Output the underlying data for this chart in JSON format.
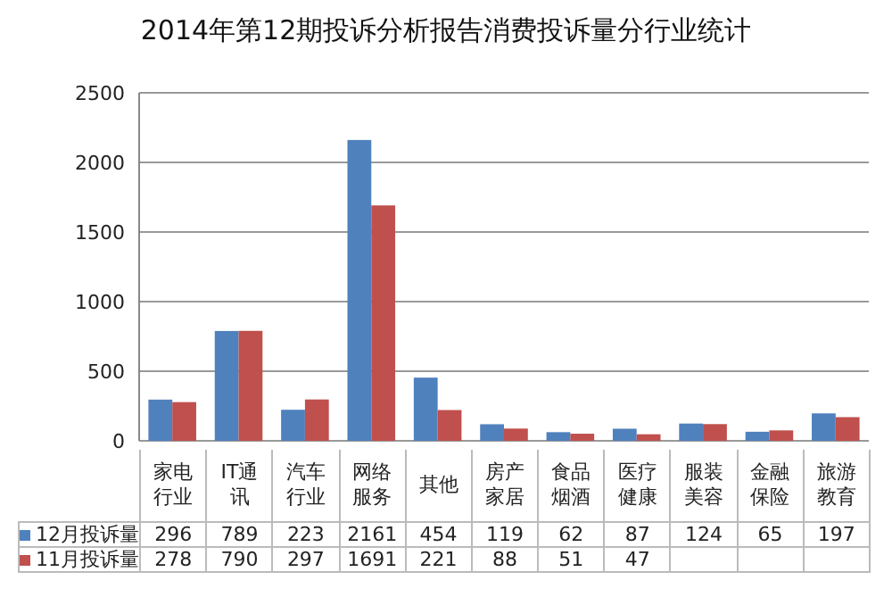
{
  "chart_data": {
    "type": "bar",
    "title": "2014年第12期投诉分析报告消费投诉量分行业统计",
    "categories": [
      "家电行业",
      "IT通讯",
      "汽车行业",
      "网络服务",
      "其他",
      "房产家居",
      "食品烟酒",
      "医疗健康",
      "服装美容",
      "金融保险",
      "旅游教育"
    ],
    "series": [
      {
        "name": "12月投诉量",
        "color": "#4f81bd",
        "values": [
          296,
          789,
          223,
          2161,
          454,
          119,
          62,
          87,
          124,
          65,
          197
        ],
        "value_labels": [
          "296",
          "789",
          "223",
          "2161",
          "454",
          "119",
          "62",
          "87",
          "124",
          "65",
          "197"
        ]
      },
      {
        "name": "11月投诉量",
        "color": "#c0504d",
        "values": [
          278,
          790,
          297,
          1691,
          221,
          88,
          51,
          47,
          120,
          75,
          170
        ],
        "value_labels": [
          "278",
          "790",
          "297",
          "1691",
          "221",
          "88",
          "51",
          "47",
          null,
          null,
          null
        ]
      }
    ],
    "ylim": [
      0,
      2500
    ],
    "yticks": [
      0,
      500,
      1000,
      1500,
      2000,
      2500
    ],
    "grid": "y",
    "legend": "bottom"
  }
}
